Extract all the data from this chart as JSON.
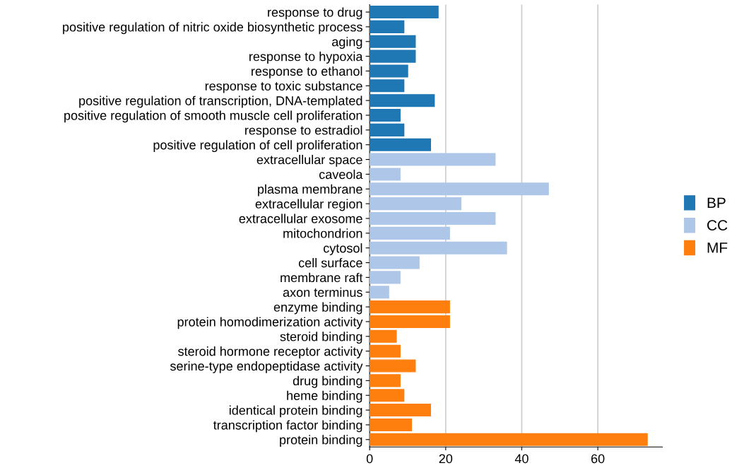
{
  "chart_data": {
    "type": "bar",
    "orientation": "horizontal",
    "categories": [
      "response to drug",
      "positive regulation of nitric oxide biosynthetic process",
      "aging",
      "response to hypoxia",
      "response to ethanol",
      "response to toxic substance",
      "positive regulation of transcription, DNA-templated",
      "positive regulation of smooth muscle cell proliferation",
      "response to estradiol",
      "positive regulation of cell proliferation",
      "extracellular space",
      "caveola",
      "plasma membrane",
      "extracellular region",
      "extracellular exosome",
      "mitochondrion",
      "cytosol",
      "cell surface",
      "membrane raft",
      "axon terminus",
      "enzyme binding",
      "protein homodimerization activity",
      "steroid binding",
      "steroid hormone receptor activity",
      "serine-type endopeptidase activity",
      "drug binding",
      "heme binding",
      "identical protein binding",
      "transcription factor binding",
      "protein binding"
    ],
    "series": [
      {
        "name": "BP",
        "color": "#1f77b4",
        "values": [
          18,
          9,
          12,
          12,
          10,
          9,
          17,
          8,
          9,
          16,
          null,
          null,
          null,
          null,
          null,
          null,
          null,
          null,
          null,
          null,
          null,
          null,
          null,
          null,
          null,
          null,
          null,
          null,
          null,
          null
        ]
      },
      {
        "name": "CC",
        "color": "#aec7e8",
        "values": [
          null,
          null,
          null,
          null,
          null,
          null,
          null,
          null,
          null,
          null,
          33,
          8,
          47,
          24,
          33,
          21,
          36,
          13,
          8,
          5,
          null,
          null,
          null,
          null,
          null,
          null,
          null,
          null,
          null,
          null
        ]
      },
      {
        "name": "MF",
        "color": "#ff7f0e",
        "values": [
          null,
          null,
          null,
          null,
          null,
          null,
          null,
          null,
          null,
          null,
          null,
          null,
          null,
          null,
          null,
          null,
          null,
          null,
          null,
          null,
          21,
          21,
          7,
          8,
          12,
          8,
          9,
          16,
          11,
          73
        ]
      }
    ],
    "xlim": [
      0,
      77
    ],
    "xticks": [
      0,
      20,
      40,
      60
    ],
    "grid": "x",
    "legend": "right"
  }
}
